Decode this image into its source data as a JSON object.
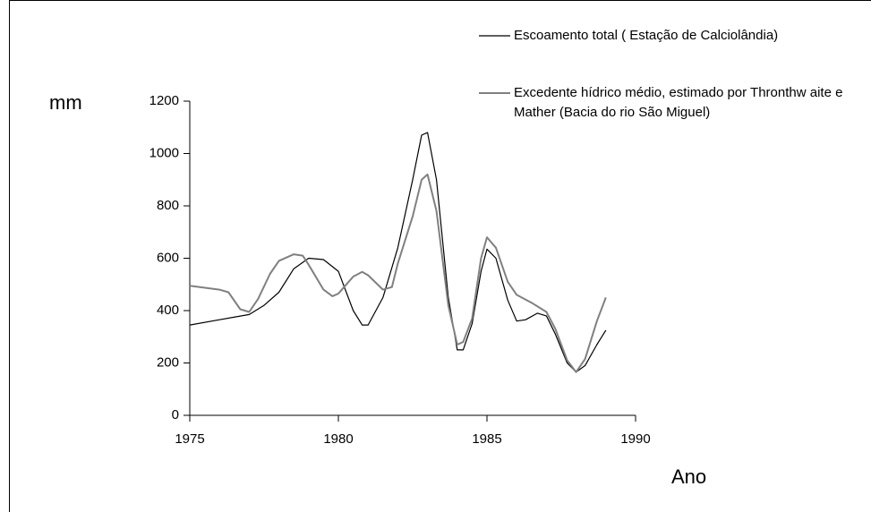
{
  "chart_data": {
    "type": "line",
    "y_label": "mm",
    "x_label": "Ano",
    "xlim": [
      1975,
      1990
    ],
    "xticks": [
      1975,
      1980,
      1985,
      1990
    ],
    "ylim": [
      0,
      1200
    ],
    "yticks": [
      0,
      200,
      400,
      600,
      800,
      1000,
      1200
    ],
    "series": [
      {
        "name": "Escoamento total ( Estação de Calciolândia)",
        "color": "#000000",
        "x": [
          1975,
          1976,
          1977,
          1977.5,
          1978,
          1978.5,
          1979,
          1979.5,
          1980,
          1980.5,
          1980.8,
          1981,
          1981.5,
          1982,
          1982.5,
          1982.8,
          1983,
          1983.3,
          1983.7,
          1984,
          1984.2,
          1984.5,
          1984.8,
          1985,
          1985.3,
          1985.7,
          1986,
          1986.3,
          1986.7,
          1987,
          1987.3,
          1987.7,
          1988,
          1988.3,
          1988.7,
          1989
        ],
        "values": [
          345,
          365,
          385,
          420,
          470,
          560,
          600,
          595,
          550,
          400,
          345,
          345,
          450,
          640,
          900,
          1070,
          1080,
          900,
          450,
          250,
          250,
          350,
          550,
          635,
          600,
          440,
          360,
          365,
          390,
          380,
          310,
          200,
          165,
          190,
          270,
          325
        ]
      },
      {
        "name": "Excedente hídrico médio, estimado por Thronthw aite e Mather (Bacia do rio São Miguel)",
        "color": "#808080",
        "x": [
          1975,
          1976,
          1976.3,
          1976.7,
          1977,
          1977.3,
          1977.7,
          1978,
          1978.5,
          1978.8,
          1979,
          1979.5,
          1979.8,
          1980,
          1980.5,
          1980.8,
          1981,
          1981.5,
          1981.8,
          1982,
          1982.5,
          1982.8,
          1983,
          1983.3,
          1983.7,
          1984,
          1984.2,
          1984.5,
          1984.8,
          1985,
          1985.3,
          1985.7,
          1986,
          1986.5,
          1987,
          1987.3,
          1987.7,
          1988,
          1988.3,
          1988.7,
          1989
        ],
        "values": [
          495,
          480,
          470,
          405,
          395,
          445,
          540,
          590,
          615,
          610,
          575,
          480,
          455,
          465,
          530,
          548,
          535,
          480,
          490,
          580,
          760,
          900,
          920,
          780,
          420,
          270,
          280,
          370,
          600,
          680,
          640,
          510,
          460,
          430,
          395,
          330,
          210,
          165,
          215,
          360,
          450
        ]
      }
    ]
  }
}
